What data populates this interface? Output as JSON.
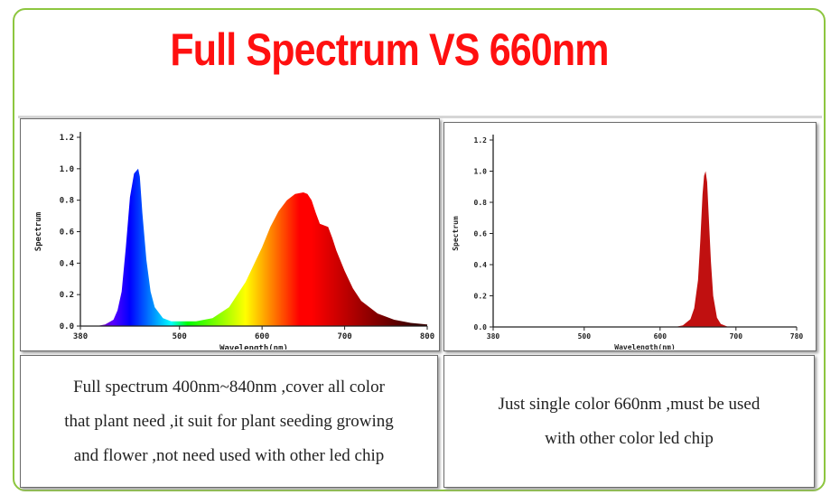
{
  "title": "Full Spectrum VS 660nm",
  "colors": {
    "title": "#ff1010",
    "frame": "#8dc63f"
  },
  "chart_data": [
    {
      "type": "area",
      "xlabel": "Wavelength(nm)",
      "ylabel": "Spectrum",
      "xlim": [
        380,
        800
      ],
      "ylim": [
        0,
        1.2
      ],
      "xticks": [
        "380",
        "500",
        "600",
        "700",
        "800"
      ],
      "yticks": [
        "0.0",
        "0.2",
        "0.4",
        "0.6",
        "0.8",
        "1.0",
        "1.2"
      ],
      "grid": false,
      "series": [
        {
          "x": [
            380,
            400,
            410,
            420,
            425,
            430,
            435,
            440,
            445,
            450,
            452,
            455,
            460,
            465,
            470,
            480,
            490,
            500,
            520,
            540,
            560,
            580,
            600,
            610,
            620,
            630,
            640,
            650,
            655,
            660,
            665,
            670,
            675,
            680,
            685,
            690,
            700,
            710,
            720,
            740,
            760,
            780,
            800
          ],
          "y": [
            0.0,
            0.0,
            0.01,
            0.04,
            0.1,
            0.22,
            0.5,
            0.82,
            0.97,
            1.0,
            0.95,
            0.72,
            0.42,
            0.22,
            0.12,
            0.05,
            0.03,
            0.03,
            0.03,
            0.05,
            0.12,
            0.28,
            0.5,
            0.63,
            0.73,
            0.8,
            0.84,
            0.85,
            0.84,
            0.8,
            0.72,
            0.65,
            0.64,
            0.63,
            0.56,
            0.48,
            0.35,
            0.24,
            0.16,
            0.08,
            0.04,
            0.02,
            0.01
          ]
        }
      ]
    },
    {
      "type": "area",
      "xlabel": "Wavelength(nm)",
      "ylabel": "Spectrum",
      "xlim": [
        380,
        780
      ],
      "ylim": [
        0,
        1.2
      ],
      "xticks": [
        "380",
        "500",
        "600",
        "700",
        "780"
      ],
      "yticks": [
        "0.0",
        "0.2",
        "0.4",
        "0.6",
        "0.8",
        "1.0",
        "1.2"
      ],
      "grid": false,
      "series": [
        {
          "color": "#c01010",
          "x": [
            380,
            620,
            630,
            640,
            645,
            650,
            653,
            656,
            658,
            660,
            662,
            664,
            667,
            670,
            675,
            680,
            690,
            700,
            780
          ],
          "y": [
            0.0,
            0.0,
            0.01,
            0.05,
            0.12,
            0.3,
            0.55,
            0.85,
            0.97,
            1.0,
            0.93,
            0.72,
            0.42,
            0.2,
            0.06,
            0.02,
            0.0,
            0.0,
            0.0
          ]
        }
      ]
    }
  ],
  "captions": {
    "left": [
      "Full spectrum 400nm~840nm ,cover all color",
      "that plant need ,it suit for plant seeding growing",
      "and flower ,not need used with other led chip"
    ],
    "right": [
      "Just single color 660nm ,must be used",
      "with other color led chip"
    ]
  }
}
